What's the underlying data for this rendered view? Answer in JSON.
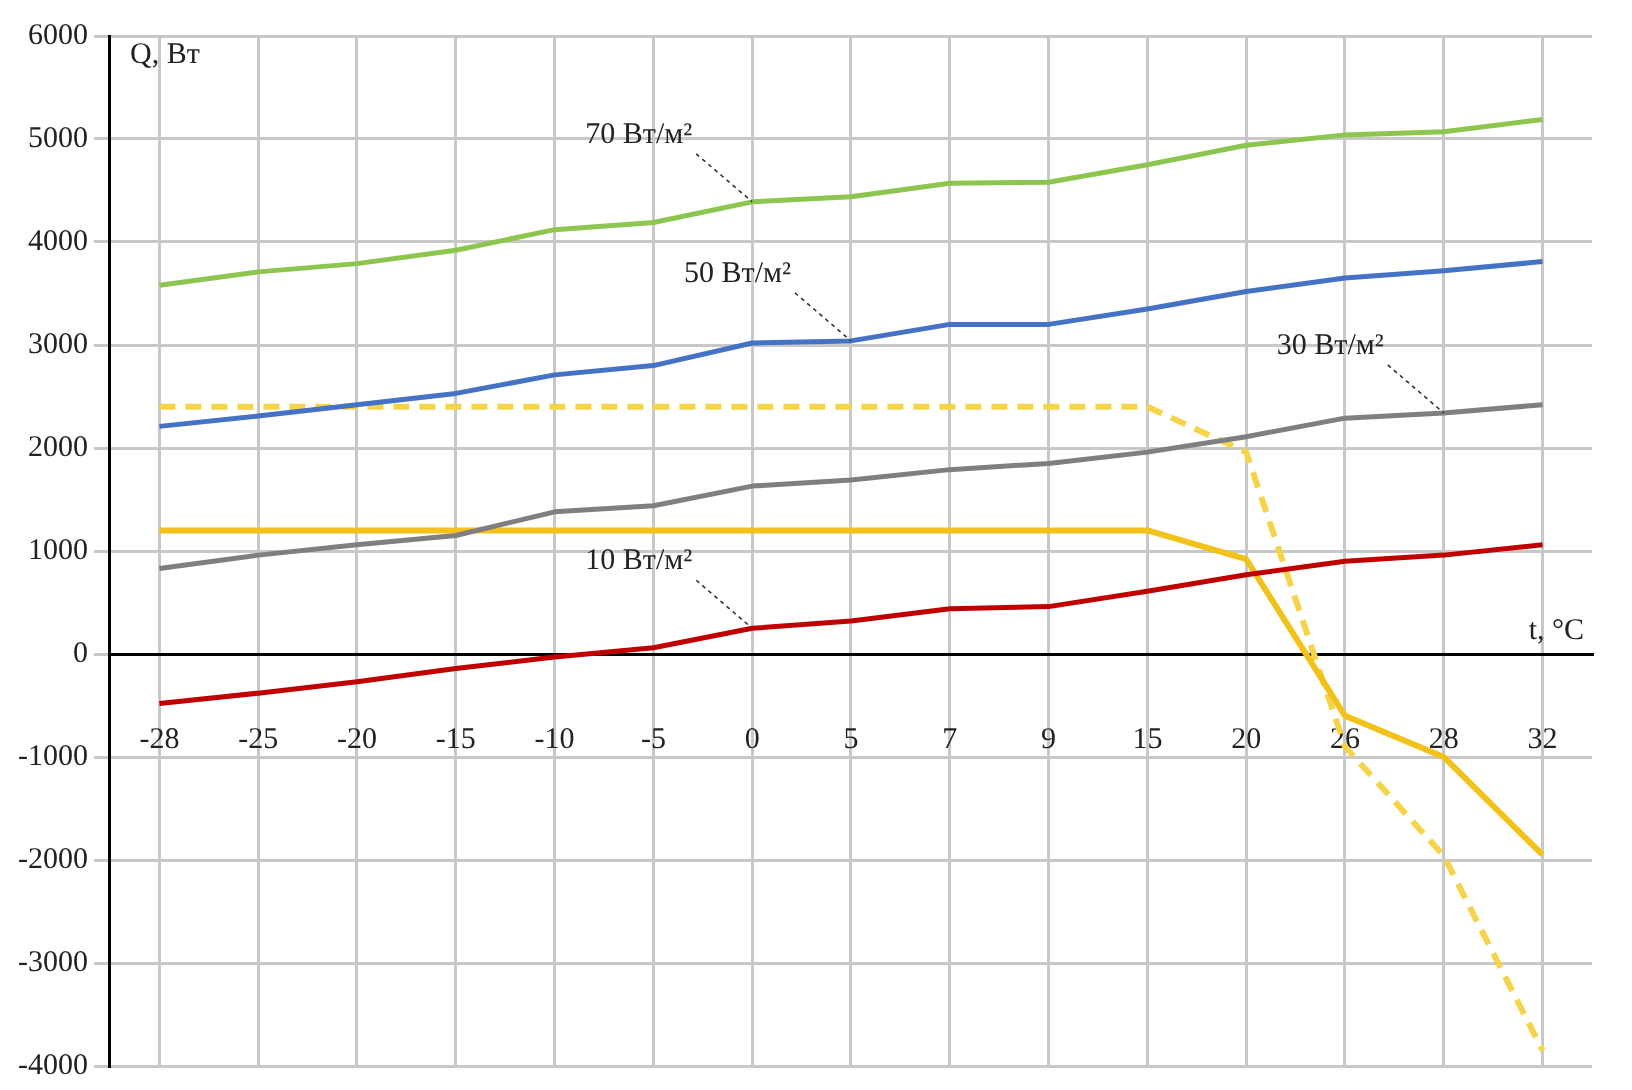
{
  "chart_data": {
    "type": "line",
    "xlabel": "t, °C",
    "ylabel": "Q, Вт",
    "categories": [
      "-28",
      "-25",
      "-20",
      "-15",
      "-10",
      "-5",
      "0",
      "5",
      "7",
      "9",
      "15",
      "20",
      "26",
      "28",
      "32"
    ],
    "series": [
      {
        "color": "#8dc64f",
        "values": [
          3580,
          3710,
          3790,
          3920,
          4120,
          4190,
          4390,
          4440,
          4570,
          4580,
          4750,
          4940,
          5040,
          5070,
          5190
        ]
      },
      {
        "color": "#4472c4",
        "values": [
          2210,
          2310,
          2420,
          2530,
          2710,
          2800,
          3020,
          3040,
          3200,
          3200,
          3350,
          3520,
          3650,
          3720,
          3810
        ]
      },
      {
        "color": "#7f7f7f",
        "values": [
          830,
          960,
          1060,
          1150,
          1380,
          1440,
          1630,
          1690,
          1790,
          1850,
          1960,
          2110,
          2290,
          2340,
          2420
        ]
      },
      {
        "color": "#c00000",
        "values": [
          -480,
          -380,
          -270,
          -140,
          -30,
          60,
          250,
          320,
          440,
          460,
          610,
          770,
          900,
          960,
          1060
        ]
      },
      {
        "color": "#f2c21b",
        "values": [
          1200,
          1200,
          1200,
          1200,
          1200,
          1200,
          1200,
          1200,
          1200,
          1200,
          1200,
          920,
          -600,
          -1000,
          -1950
        ]
      },
      {
        "color": "#f5d44a",
        "line_style": "dashed",
        "values": [
          2400,
          2400,
          2400,
          2400,
          2400,
          2400,
          2400,
          2400,
          2400,
          2400,
          2400,
          1960,
          -900,
          -1960,
          -3850
        ]
      }
    ],
    "ylim": [
      -4000,
      6000
    ],
    "yticks": [
      -4000,
      -3000,
      -2000,
      -1000,
      0,
      1000,
      2000,
      3000,
      4000,
      5000,
      6000
    ],
    "grid": true,
    "legend": false,
    "marker": "none",
    "annotations": [
      {
        "text": "70 Вт/м²",
        "x": "0",
        "y": 4390
      },
      {
        "text": "50 Вт/м²",
        "x": "5",
        "y": 3040
      },
      {
        "text": "30 Вт/м²",
        "x": "28",
        "y": 2340
      },
      {
        "text": "10 Вт/м²",
        "x": "0",
        "y": 250
      }
    ]
  }
}
